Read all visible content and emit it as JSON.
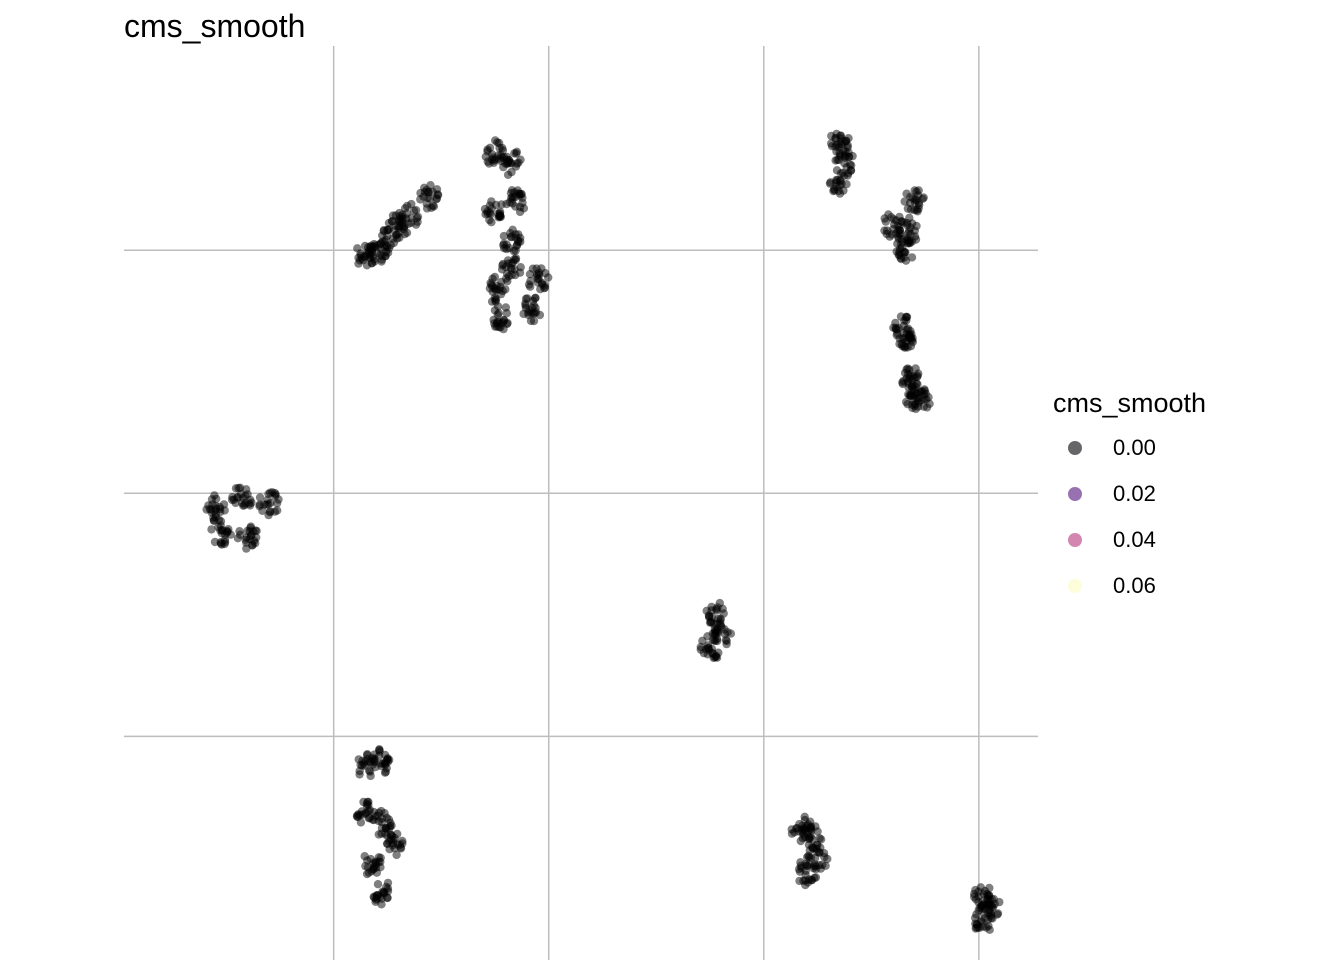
{
  "chart_data": {
    "type": "scatter",
    "title": "cms_smooth",
    "xlabel": "",
    "ylabel": "",
    "grid": true,
    "point_color": "#000000",
    "point_opacity": 0.5,
    "xlim": [
      -3.95,
      4.55
    ],
    "ylim": [
      -4.8,
      4.6
    ],
    "x_gridlines": [
      -2,
      0,
      2,
      4
    ],
    "y_gridlines": [
      -2.5,
      0,
      2.5
    ],
    "clusters": [
      {
        "x": [
          -1.6,
          -1.5,
          -1.4,
          -1.3,
          -1.1,
          -1.7
        ],
        "y": [
          2.5,
          2.6,
          2.75,
          2.85,
          3.05,
          2.45
        ]
      },
      {
        "x": [
          -0.5,
          -0.35,
          -0.5,
          -0.35,
          -0.5,
          -0.35,
          -0.45,
          -0.1,
          -0.15,
          -0.3
        ],
        "y": [
          3.5,
          3.4,
          2.9,
          2.6,
          2.1,
          2.3,
          1.8,
          2.2,
          1.9,
          3.0
        ]
      },
      {
        "x": [
          -3.1,
          -2.85,
          -2.6,
          -3.05,
          -2.8
        ],
        "y": [
          -0.15,
          -0.05,
          -0.1,
          -0.4,
          -0.45
        ]
      },
      {
        "x": [
          -1.7,
          -1.55,
          -1.7,
          -1.55,
          -1.65,
          -1.45,
          -1.55
        ],
        "y": [
          -2.8,
          -2.75,
          -3.3,
          -3.4,
          -3.8,
          -3.6,
          -4.1
        ]
      },
      {
        "x": [
          1.55,
          1.6,
          1.5
        ],
        "y": [
          -1.25,
          -1.45,
          -1.6
        ]
      },
      {
        "x": [
          2.7,
          2.75,
          2.7
        ],
        "y": [
          3.6,
          3.4,
          3.2
        ]
      },
      {
        "x": [
          3.2,
          3.35,
          3.4,
          3.3
        ],
        "y": [
          2.75,
          2.7,
          3.0,
          2.5
        ]
      },
      {
        "x": [
          3.3,
          3.3
        ],
        "y": [
          1.7,
          1.6
        ]
      },
      {
        "x": [
          3.35,
          3.4,
          3.45
        ],
        "y": [
          1.2,
          1.0,
          0.95
        ]
      },
      {
        "x": [
          2.35,
          2.45,
          2.5,
          2.4
        ],
        "y": [
          -3.45,
          -3.55,
          -3.75,
          -3.9
        ]
      },
      {
        "x": [
          4.05,
          4.1,
          4.05
        ],
        "y": [
          -4.15,
          -4.25,
          -4.4
        ]
      }
    ]
  },
  "legend": {
    "title": "cms_smooth",
    "items": [
      {
        "label": "0.00",
        "color": "#000004"
      },
      {
        "label": "0.02",
        "color": "#51127C"
      },
      {
        "label": "0.04",
        "color": "#B63679"
      },
      {
        "label": "0.06",
        "color": "#FCFDBF"
      }
    ]
  }
}
